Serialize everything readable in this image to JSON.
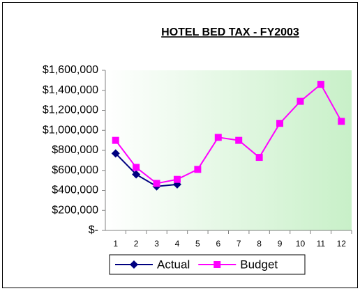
{
  "chart_data": {
    "type": "line",
    "title": "HOTEL BED TAX - FY2003",
    "categories": [
      "1",
      "2",
      "3",
      "4",
      "5",
      "6",
      "7",
      "8",
      "9",
      "10",
      "11",
      "12"
    ],
    "series": [
      {
        "name": "Actual",
        "color": "#000080",
        "marker": "diamond",
        "values": [
          770000,
          560000,
          440000,
          460000,
          null,
          null,
          null,
          null,
          null,
          null,
          null,
          null
        ]
      },
      {
        "name": "Budget",
        "color": "#ff00ff",
        "marker": "square",
        "values": [
          900000,
          630000,
          470000,
          510000,
          610000,
          930000,
          900000,
          730000,
          1070000,
          1290000,
          1460000,
          1090000
        ]
      }
    ],
    "ylim": [
      0,
      1600000
    ],
    "yticks": [
      {
        "value": 0,
        "label": "$-"
      },
      {
        "value": 200000,
        "label": "$200,000"
      },
      {
        "value": 400000,
        "label": "$400,000"
      },
      {
        "value": 600000,
        "label": "$600,000"
      },
      {
        "value": 800000,
        "label": "$800,000"
      },
      {
        "value": 1000000,
        "label": "$1,000,000"
      },
      {
        "value": 1200000,
        "label": "$1,200,000"
      },
      {
        "value": 1400000,
        "label": "$1,400,000"
      },
      {
        "value": 1600000,
        "label": "$1,600,000"
      }
    ],
    "legend": "bottom"
  }
}
